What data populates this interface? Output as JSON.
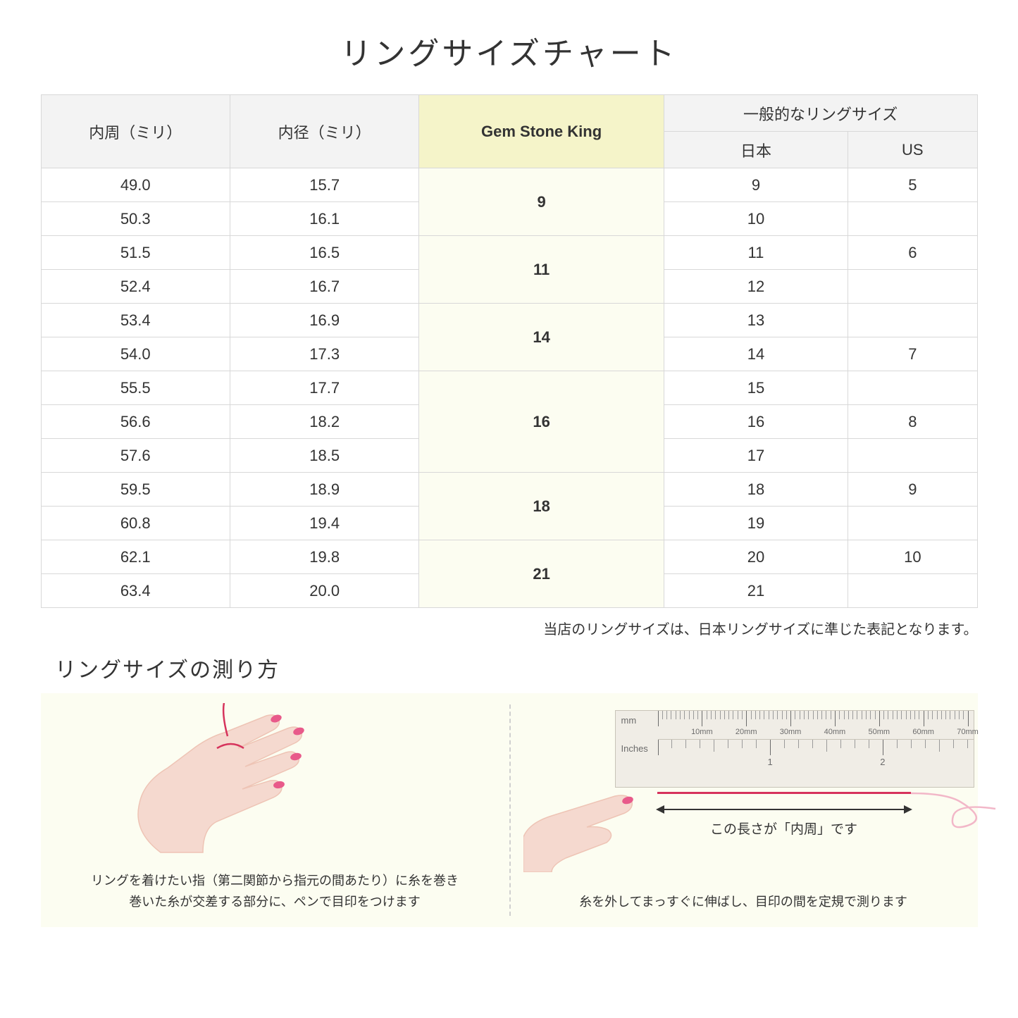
{
  "title": "リングサイズチャート",
  "headers": {
    "circum": "内周（ミリ）",
    "diameter": "内径（ミリ）",
    "gsk": "Gem Stone King",
    "general": "一般的なリングサイズ",
    "jp": "日本",
    "us": "US"
  },
  "groups": [
    {
      "gsk": "9",
      "rows": [
        {
          "c": "49.0",
          "d": "15.7",
          "jp": "9",
          "us": "5"
        },
        {
          "c": "50.3",
          "d": "16.1",
          "jp": "10",
          "us": ""
        }
      ]
    },
    {
      "gsk": "11",
      "rows": [
        {
          "c": "51.5",
          "d": "16.5",
          "jp": "11",
          "us": "6"
        },
        {
          "c": "52.4",
          "d": "16.7",
          "jp": "12",
          "us": ""
        }
      ]
    },
    {
      "gsk": "14",
      "rows": [
        {
          "c": "53.4",
          "d": "16.9",
          "jp": "13",
          "us": ""
        },
        {
          "c": "54.0",
          "d": "17.3",
          "jp": "14",
          "us": "7"
        }
      ]
    },
    {
      "gsk": "16",
      "rows": [
        {
          "c": "55.5",
          "d": "17.7",
          "jp": "15",
          "us": ""
        },
        {
          "c": "56.6",
          "d": "18.2",
          "jp": "16",
          "us": "8"
        },
        {
          "c": "57.6",
          "d": "18.5",
          "jp": "17",
          "us": ""
        }
      ]
    },
    {
      "gsk": "18",
      "rows": [
        {
          "c": "59.5",
          "d": "18.9",
          "jp": "18",
          "us": "9"
        },
        {
          "c": "60.8",
          "d": "19.4",
          "jp": "19",
          "us": ""
        }
      ]
    },
    {
      "gsk": "21",
      "rows": [
        {
          "c": "62.1",
          "d": "19.8",
          "jp": "20",
          "us": "10"
        },
        {
          "c": "63.4",
          "d": "20.0",
          "jp": "21",
          "us": ""
        }
      ]
    }
  ],
  "note": "当店のリングサイズは、日本リングサイズに準じた表記となります。",
  "measure_title": "リングサイズの測り方",
  "panel1_text": "リングを着けたい指（第二関節から指元の間あたり）に糸を巻き\n巻いた糸が交差する部分に、ペンで目印をつけます",
  "panel2_text": "糸を外してまっすぐに伸ばし、目印の間を定規で測ります",
  "arrow_label": "この長さが「内周」です",
  "ruler": {
    "mm_label": "mm",
    "in_label": "Inches",
    "mm_ticks": [
      "10mm",
      "20mm",
      "30mm",
      "40mm",
      "50mm",
      "60mm",
      "70mm"
    ],
    "in_ticks": [
      "1",
      "2"
    ]
  },
  "colors": {
    "skin": "#f5d9cf",
    "skin_dark": "#eec4b5",
    "nail": "#e85a8a",
    "thread": "#d6335c",
    "curl": "#f2b7c8"
  }
}
